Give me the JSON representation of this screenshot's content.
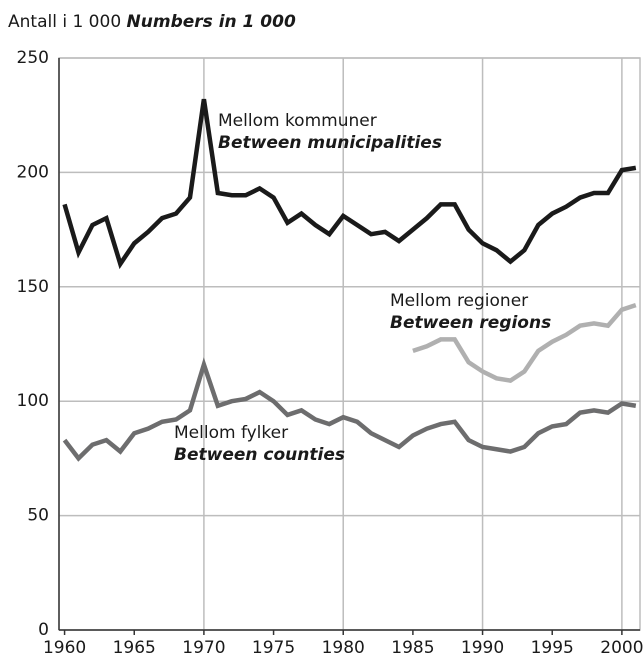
{
  "chart_data": {
    "type": "line",
    "ylabel": "Antall i 1 000",
    "ylabel_en": "Numbers in 1 000",
    "x": [
      1960,
      1961,
      1962,
      1963,
      1964,
      1965,
      1966,
      1967,
      1968,
      1969,
      1970,
      1971,
      1972,
      1973,
      1974,
      1975,
      1976,
      1977,
      1978,
      1979,
      1980,
      1981,
      1982,
      1983,
      1984,
      1985,
      1986,
      1987,
      1988,
      1989,
      1990,
      1991,
      1992,
      1993,
      1994,
      1995,
      1996,
      1997,
      1998,
      1999,
      2000,
      2001
    ],
    "series": [
      {
        "name": "Mellom kommuner",
        "name_en": "Between municipalities",
        "color": "#1a1a1a",
        "values": [
          186,
          165,
          177,
          180,
          160,
          169,
          174,
          180,
          182,
          189,
          232,
          191,
          190,
          190,
          193,
          189,
          178,
          182,
          177,
          173,
          181,
          177,
          173,
          174,
          170,
          175,
          180,
          186,
          186,
          175,
          169,
          166,
          161,
          166,
          177,
          182,
          185,
          189,
          191,
          191,
          201,
          202
        ]
      },
      {
        "name": "Mellom regioner",
        "name_en": "Between regions",
        "color": "#b0b0b0",
        "values": [
          null,
          null,
          null,
          null,
          null,
          null,
          null,
          null,
          null,
          null,
          null,
          null,
          null,
          null,
          null,
          null,
          null,
          null,
          null,
          null,
          null,
          null,
          null,
          null,
          null,
          122,
          124,
          127,
          127,
          117,
          113,
          110,
          109,
          113,
          122,
          126,
          129,
          133,
          134,
          133,
          140,
          142
        ]
      },
      {
        "name": "Mellom fylker",
        "name_en": "Between counties",
        "color": "#6d6d6e",
        "values": [
          83,
          75,
          81,
          83,
          78,
          86,
          88,
          91,
          92,
          96,
          116,
          98,
          100,
          101,
          104,
          100,
          94,
          96,
          92,
          90,
          93,
          91,
          86,
          83,
          80,
          85,
          88,
          90,
          91,
          83,
          80,
          79,
          78,
          80,
          86,
          89,
          90,
          95,
          96,
          95,
          99,
          98
        ]
      }
    ],
    "xlim": [
      1959.6,
      2001.3
    ],
    "xticks": [
      1960,
      1965,
      1970,
      1975,
      1980,
      1985,
      1990,
      1995,
      2000
    ],
    "xgrid": [
      1970,
      1980,
      1990,
      2000
    ],
    "ylim": [
      0,
      250
    ],
    "yticks": [
      0,
      50,
      100,
      150,
      200,
      250
    ],
    "grid": true
  }
}
